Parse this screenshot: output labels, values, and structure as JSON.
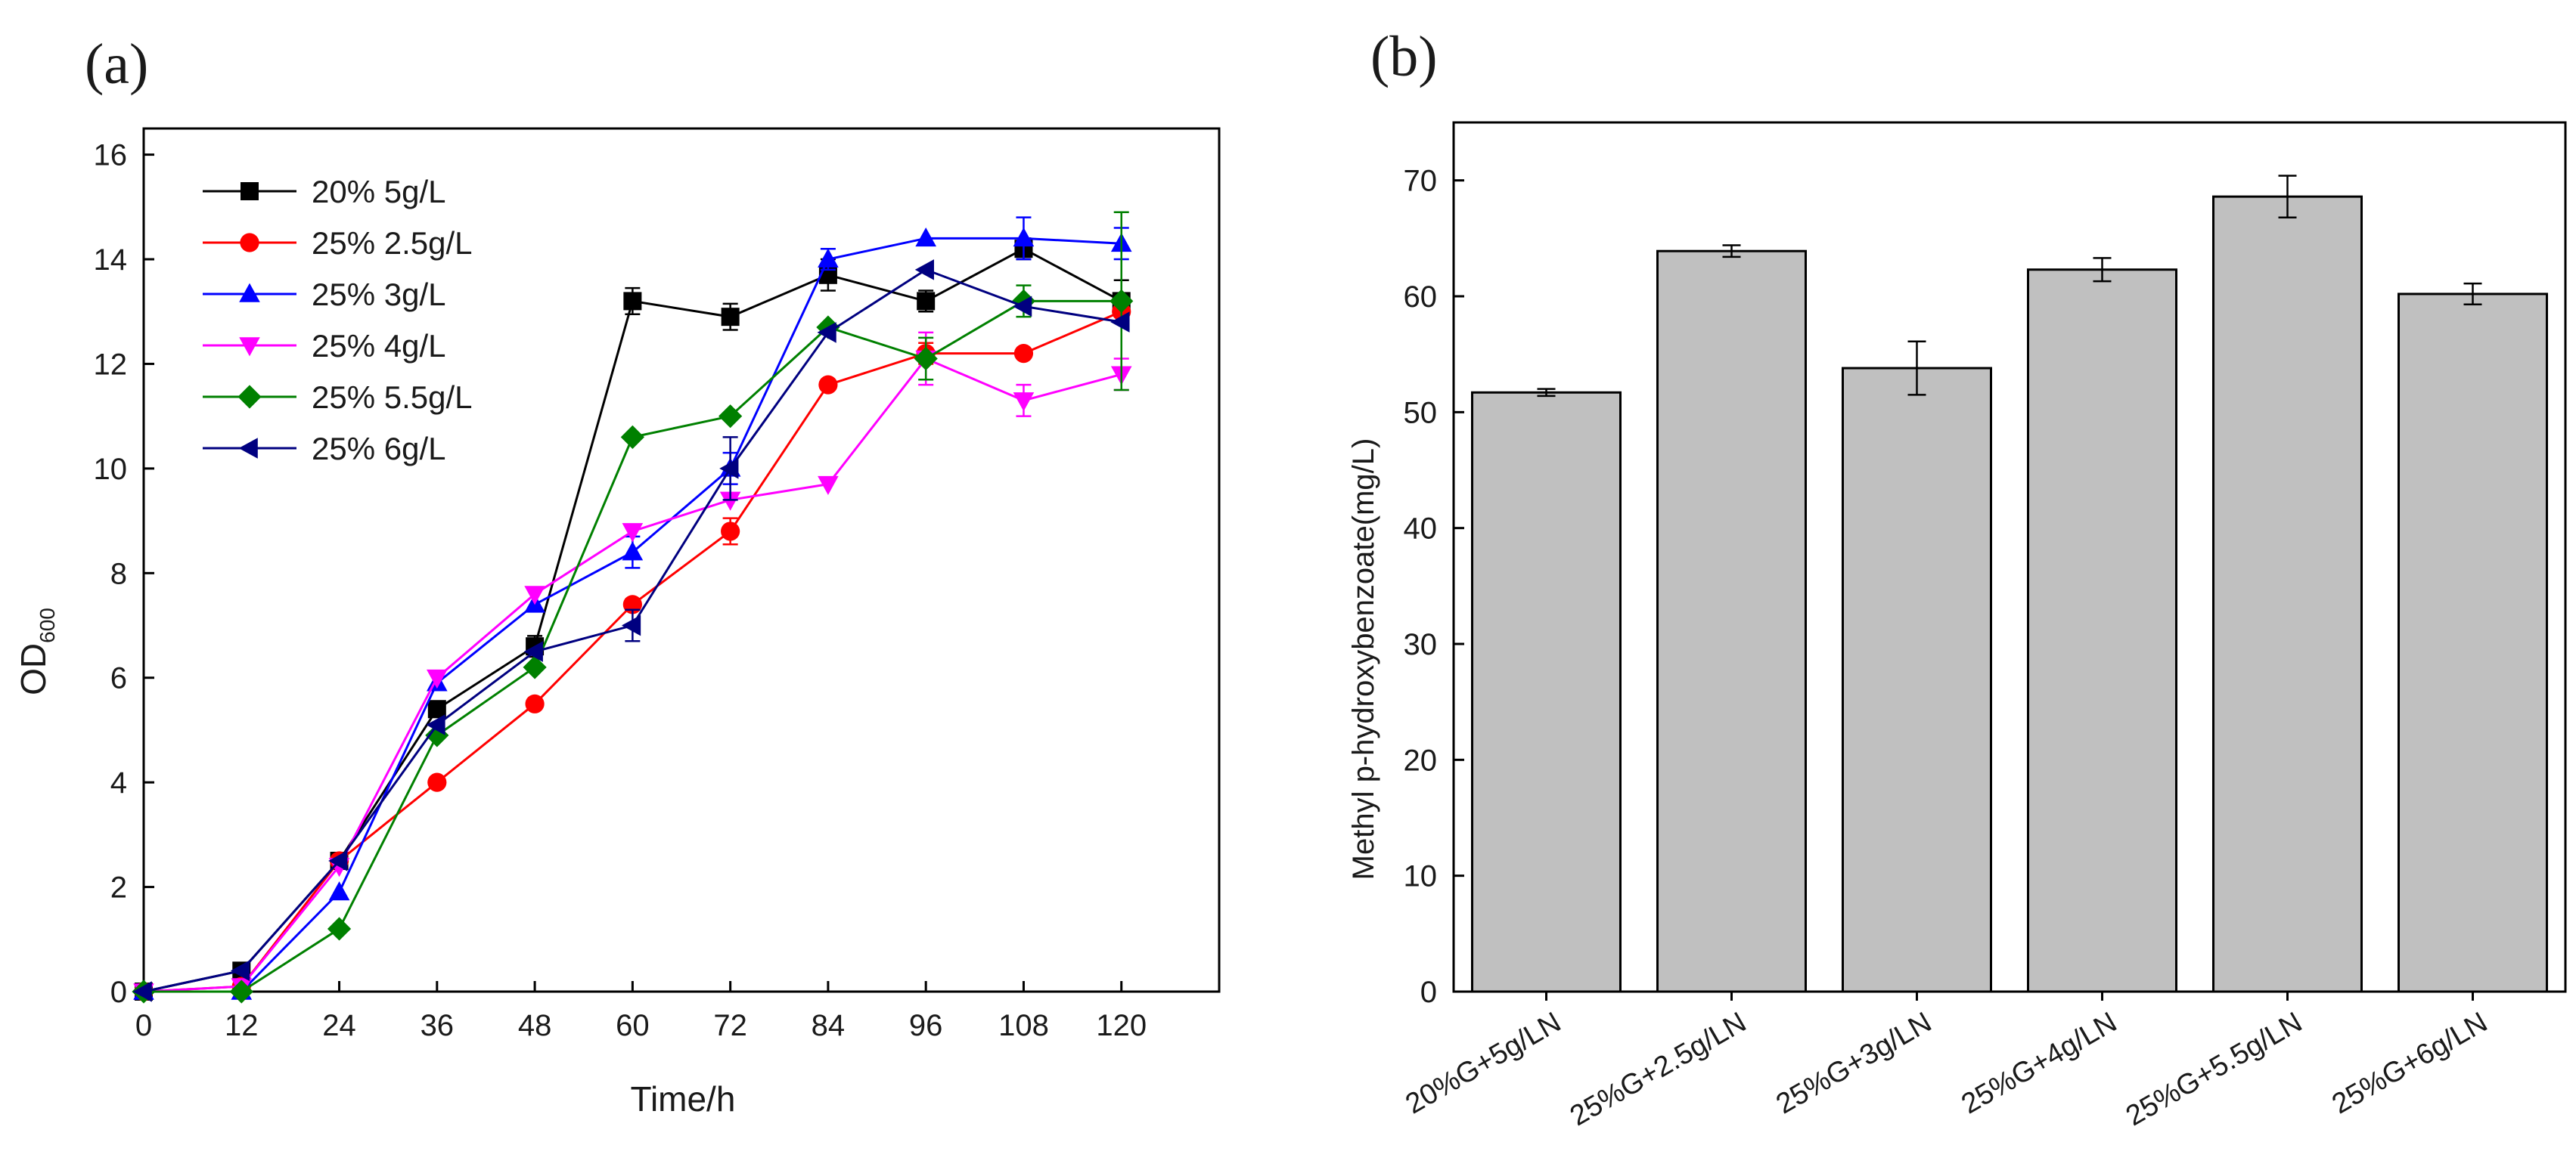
{
  "chart_data": [
    {
      "panel_label": "(a)",
      "type": "line",
      "xlabel": "Time/h",
      "ylabel_main": "OD",
      "ylabel_sub": "600",
      "xlim": [
        0,
        132
      ],
      "ylim": [
        0,
        16.5
      ],
      "xticks": [
        0,
        12,
        24,
        36,
        48,
        60,
        72,
        84,
        96,
        108,
        120
      ],
      "yticks": [
        0,
        2,
        4,
        6,
        8,
        10,
        12,
        14,
        16
      ],
      "x": [
        0,
        12,
        24,
        36,
        48,
        60,
        72,
        84,
        96,
        108,
        120
      ],
      "legend_position": "top-left",
      "series": [
        {
          "name": "20% 5g/L",
          "color": "#000000",
          "marker": "square",
          "values": [
            0,
            0.4,
            2.5,
            5.4,
            6.6,
            13.2,
            12.9,
            13.7,
            13.2,
            14.2,
            13.2
          ],
          "errors": [
            0,
            0,
            0,
            0,
            0.2,
            0.25,
            0.25,
            0.3,
            0.2,
            0.2,
            0.4
          ]
        },
        {
          "name": "25% 2.5g/L",
          "color": "#ff0000",
          "marker": "circle",
          "values": [
            0,
            0.1,
            2.5,
            4.0,
            5.5,
            7.4,
            8.8,
            11.6,
            12.2,
            12.2,
            13.0
          ],
          "errors": [
            0,
            0,
            0,
            0,
            0,
            0.1,
            0.25,
            0,
            0.2,
            0,
            0.2
          ]
        },
        {
          "name": "25% 3g/L",
          "color": "#0000ff",
          "marker": "triangle-up",
          "values": [
            0,
            0,
            1.9,
            5.9,
            7.4,
            8.4,
            10.0,
            14.0,
            14.4,
            14.4,
            14.3
          ],
          "errors": [
            0,
            0,
            0,
            0,
            0,
            0.3,
            0.3,
            0.2,
            0,
            0.4,
            0.3
          ]
        },
        {
          "name": "25% 4g/L",
          "color": "#ff00ff",
          "marker": "triangle-down",
          "values": [
            0,
            0.1,
            2.4,
            6.0,
            7.6,
            8.8,
            9.4,
            9.7,
            12.1,
            11.3,
            11.8
          ],
          "errors": [
            0,
            0,
            0,
            0,
            0,
            0,
            0,
            0,
            0.5,
            0.3,
            0.3
          ]
        },
        {
          "name": "25% 5.5g/L",
          "color": "#008000",
          "marker": "diamond",
          "values": [
            0,
            0,
            1.2,
            4.9,
            6.2,
            10.6,
            11.0,
            12.7,
            12.1,
            13.2,
            13.2
          ],
          "errors": [
            0,
            0,
            0,
            0,
            0,
            0,
            0,
            0,
            0.4,
            0.3,
            1.7
          ]
        },
        {
          "name": "25% 6g/L",
          "color": "#000080",
          "marker": "triangle-left",
          "values": [
            0,
            0.4,
            2.5,
            5.1,
            6.5,
            7.0,
            10.0,
            12.6,
            13.8,
            13.1,
            12.8
          ],
          "errors": [
            0,
            0,
            0,
            0,
            0,
            0.3,
            0.6,
            0,
            0,
            0,
            0
          ]
        }
      ]
    },
    {
      "panel_label": "(b)",
      "type": "bar",
      "xlabel": "",
      "ylabel": "Methyl p-hydroxybenzoate(mg/L)",
      "ylim": [
        0,
        75
      ],
      "yticks": [
        0,
        10,
        20,
        30,
        40,
        50,
        60,
        70
      ],
      "bar_color": "#c0c0c0",
      "categories": [
        "20%G+5g/LN",
        "25%G+2.5g/LN",
        "25%G+3g/LN",
        "25%G+4g/LN",
        "25%G+5.5g/LN",
        "25%G+6g/LN"
      ],
      "values": [
        51.7,
        63.9,
        53.8,
        62.3,
        68.6,
        60.2
      ],
      "errors": [
        0.3,
        0.5,
        2.3,
        1.0,
        1.8,
        0.9
      ]
    }
  ]
}
